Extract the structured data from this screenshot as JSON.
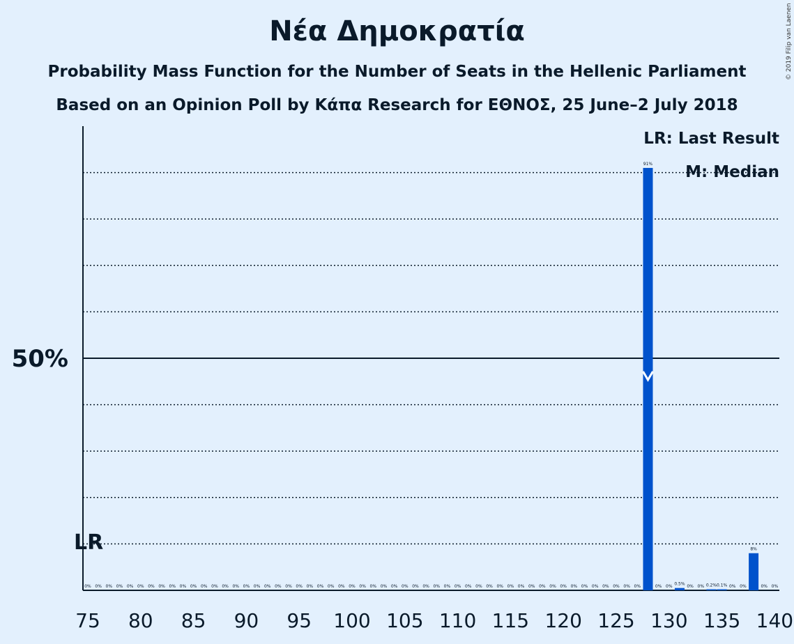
{
  "title": "Νέα Δημοκρατία",
  "subtitle1": "Probability Mass Function for the Number of Seats in the Hellenic Parliament",
  "subtitle2": "Based on an Opinion Poll by Κάπα Research for ΕΘΝΟΣ, 25 June–2 July 2018",
  "copyright": "© 2019 Filip van Laenen",
  "legend": {
    "lr": "LR: Last Result",
    "median": "M: Median"
  },
  "chart_data": {
    "type": "bar",
    "bar_color": "#0052cc",
    "x": [
      75,
      76,
      77,
      78,
      79,
      80,
      81,
      82,
      83,
      84,
      85,
      86,
      87,
      88,
      89,
      90,
      91,
      92,
      93,
      94,
      95,
      96,
      97,
      98,
      99,
      100,
      101,
      102,
      103,
      104,
      105,
      106,
      107,
      108,
      109,
      110,
      111,
      112,
      113,
      114,
      115,
      116,
      117,
      118,
      119,
      120,
      121,
      122,
      123,
      124,
      125,
      126,
      127,
      128,
      129,
      130,
      131,
      132,
      133,
      134,
      135,
      136,
      137,
      138,
      139,
      140
    ],
    "values": [
      0,
      0,
      0,
      0,
      0,
      0,
      0,
      0,
      0,
      0,
      0,
      0,
      0,
      0,
      0,
      0,
      0,
      0,
      0,
      0,
      0,
      0,
      0,
      0,
      0,
      0,
      0,
      0,
      0,
      0,
      0,
      0,
      0,
      0,
      0,
      0,
      0,
      0,
      0,
      0,
      0,
      0,
      0,
      0,
      0,
      0,
      0,
      0,
      0,
      0,
      0,
      0,
      0,
      91,
      0,
      0,
      0.5,
      0,
      0,
      0.2,
      0.1,
      0,
      0,
      8,
      0,
      0
    ],
    "labels": [
      "0%",
      "0%",
      "0%",
      "0%",
      "0%",
      "0%",
      "0%",
      "0%",
      "0%",
      "0%",
      "0%",
      "0%",
      "0%",
      "0%",
      "0%",
      "0%",
      "0%",
      "0%",
      "0%",
      "0%",
      "0%",
      "0%",
      "0%",
      "0%",
      "0%",
      "0%",
      "0%",
      "0%",
      "0%",
      "0%",
      "0%",
      "0%",
      "0%",
      "0%",
      "0%",
      "0%",
      "0%",
      "0%",
      "0%",
      "0%",
      "0%",
      "0%",
      "0%",
      "0%",
      "0%",
      "0%",
      "0%",
      "0%",
      "0%",
      "0%",
      "0%",
      "0%",
      "0%",
      "91%",
      "0%",
      "0%",
      "0.5%",
      "0%",
      "0%",
      "0.2%",
      "0.1%",
      "0%",
      "0%",
      "8%",
      "0%",
      "0%"
    ],
    "x_ticks": [
      "75",
      "80",
      "85",
      "90",
      "95",
      "100",
      "105",
      "110",
      "115",
      "120",
      "125",
      "130",
      "135",
      "140"
    ],
    "x_tick_values": [
      75,
      80,
      85,
      90,
      95,
      100,
      105,
      110,
      115,
      120,
      125,
      130,
      135,
      140
    ],
    "y_tick_label": "50%",
    "y_tick_value": 50,
    "ylim": [
      0,
      100
    ],
    "grid_lines": [
      10,
      20,
      30,
      40,
      60,
      70,
      80,
      90
    ],
    "last_result": {
      "seat": 75,
      "label": "LR"
    },
    "median": {
      "seat": 128
    }
  }
}
